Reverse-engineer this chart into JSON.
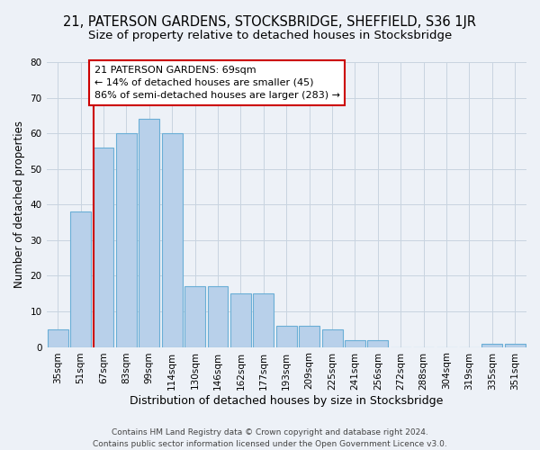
{
  "title": "21, PATERSON GARDENS, STOCKSBRIDGE, SHEFFIELD, S36 1JR",
  "subtitle": "Size of property relative to detached houses in Stocksbridge",
  "xlabel": "Distribution of detached houses by size in Stocksbridge",
  "ylabel": "Number of detached properties",
  "categories": [
    "35sqm",
    "51sqm",
    "67sqm",
    "83sqm",
    "99sqm",
    "114sqm",
    "130sqm",
    "146sqm",
    "162sqm",
    "177sqm",
    "193sqm",
    "209sqm",
    "225sqm",
    "241sqm",
    "256sqm",
    "272sqm",
    "288sqm",
    "304sqm",
    "319sqm",
    "335sqm",
    "351sqm"
  ],
  "values": [
    5,
    38,
    56,
    60,
    64,
    60,
    17,
    17,
    15,
    15,
    6,
    6,
    5,
    2,
    2,
    0,
    0,
    0,
    0,
    1,
    1
  ],
  "bar_color": "#b8d0ea",
  "bar_edge_color": "#6aaed6",
  "grid_color": "#c8d4e0",
  "background_color": "#edf1f7",
  "annotation_line1": "21 PATERSON GARDENS: 69sqm",
  "annotation_line2": "← 14% of detached houses are smaller (45)",
  "annotation_line3": "86% of semi-detached houses are larger (283) →",
  "annotation_box_color": "#ffffff",
  "annotation_box_edge": "#cc0000",
  "vline_index": 2,
  "ylim": [
    0,
    80
  ],
  "yticks": [
    0,
    10,
    20,
    30,
    40,
    50,
    60,
    70,
    80
  ],
  "footer_line1": "Contains HM Land Registry data © Crown copyright and database right 2024.",
  "footer_line2": "Contains public sector information licensed under the Open Government Licence v3.0.",
  "title_fontsize": 10.5,
  "subtitle_fontsize": 9.5,
  "xlabel_fontsize": 9,
  "ylabel_fontsize": 8.5,
  "tick_fontsize": 7.5,
  "annotation_fontsize": 8,
  "footer_fontsize": 6.5
}
